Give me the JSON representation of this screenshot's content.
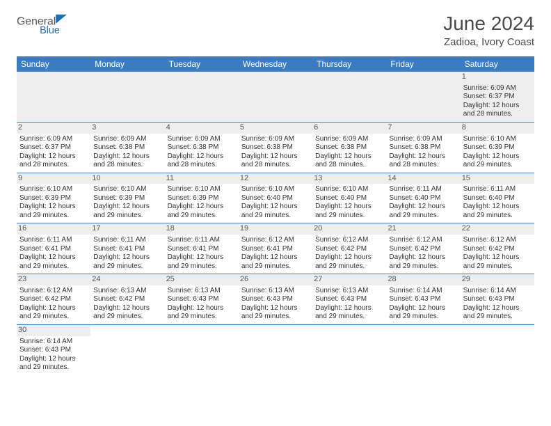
{
  "brand": {
    "word1": "General",
    "word2": "Blue",
    "word1_color": "#555555",
    "word2_color": "#1c6fb3",
    "sail_color": "#1c6fb3"
  },
  "header": {
    "title": "June 2024",
    "subtitle": "Zadioa, Ivory Coast",
    "title_color": "#4a4a4a",
    "subtitle_color": "#4a4a4a"
  },
  "styling": {
    "header_bg": "#3b7bbf",
    "header_text": "#ffffff",
    "daynum_bg": "#eeeeee",
    "cell_border": "#3b7bbf",
    "body_text": "#333333",
    "background": "#ffffff",
    "day_font_size": 11,
    "cell_font_size": 10,
    "title_font_size": 28,
    "subtitle_font_size": 15
  },
  "weekdays": [
    "Sunday",
    "Monday",
    "Tuesday",
    "Wednesday",
    "Thursday",
    "Friday",
    "Saturday"
  ],
  "weeks": [
    [
      null,
      null,
      null,
      null,
      null,
      null,
      {
        "day": "1",
        "sunrise": "Sunrise: 6:09 AM",
        "sunset": "Sunset: 6:37 PM",
        "daylight1": "Daylight: 12 hours",
        "daylight2": "and 28 minutes."
      }
    ],
    [
      {
        "day": "2",
        "sunrise": "Sunrise: 6:09 AM",
        "sunset": "Sunset: 6:37 PM",
        "daylight1": "Daylight: 12 hours",
        "daylight2": "and 28 minutes."
      },
      {
        "day": "3",
        "sunrise": "Sunrise: 6:09 AM",
        "sunset": "Sunset: 6:38 PM",
        "daylight1": "Daylight: 12 hours",
        "daylight2": "and 28 minutes."
      },
      {
        "day": "4",
        "sunrise": "Sunrise: 6:09 AM",
        "sunset": "Sunset: 6:38 PM",
        "daylight1": "Daylight: 12 hours",
        "daylight2": "and 28 minutes."
      },
      {
        "day": "5",
        "sunrise": "Sunrise: 6:09 AM",
        "sunset": "Sunset: 6:38 PM",
        "daylight1": "Daylight: 12 hours",
        "daylight2": "and 28 minutes."
      },
      {
        "day": "6",
        "sunrise": "Sunrise: 6:09 AM",
        "sunset": "Sunset: 6:38 PM",
        "daylight1": "Daylight: 12 hours",
        "daylight2": "and 28 minutes."
      },
      {
        "day": "7",
        "sunrise": "Sunrise: 6:09 AM",
        "sunset": "Sunset: 6:38 PM",
        "daylight1": "Daylight: 12 hours",
        "daylight2": "and 28 minutes."
      },
      {
        "day": "8",
        "sunrise": "Sunrise: 6:10 AM",
        "sunset": "Sunset: 6:39 PM",
        "daylight1": "Daylight: 12 hours",
        "daylight2": "and 29 minutes."
      }
    ],
    [
      {
        "day": "9",
        "sunrise": "Sunrise: 6:10 AM",
        "sunset": "Sunset: 6:39 PM",
        "daylight1": "Daylight: 12 hours",
        "daylight2": "and 29 minutes."
      },
      {
        "day": "10",
        "sunrise": "Sunrise: 6:10 AM",
        "sunset": "Sunset: 6:39 PM",
        "daylight1": "Daylight: 12 hours",
        "daylight2": "and 29 minutes."
      },
      {
        "day": "11",
        "sunrise": "Sunrise: 6:10 AM",
        "sunset": "Sunset: 6:39 PM",
        "daylight1": "Daylight: 12 hours",
        "daylight2": "and 29 minutes."
      },
      {
        "day": "12",
        "sunrise": "Sunrise: 6:10 AM",
        "sunset": "Sunset: 6:40 PM",
        "daylight1": "Daylight: 12 hours",
        "daylight2": "and 29 minutes."
      },
      {
        "day": "13",
        "sunrise": "Sunrise: 6:10 AM",
        "sunset": "Sunset: 6:40 PM",
        "daylight1": "Daylight: 12 hours",
        "daylight2": "and 29 minutes."
      },
      {
        "day": "14",
        "sunrise": "Sunrise: 6:11 AM",
        "sunset": "Sunset: 6:40 PM",
        "daylight1": "Daylight: 12 hours",
        "daylight2": "and 29 minutes."
      },
      {
        "day": "15",
        "sunrise": "Sunrise: 6:11 AM",
        "sunset": "Sunset: 6:40 PM",
        "daylight1": "Daylight: 12 hours",
        "daylight2": "and 29 minutes."
      }
    ],
    [
      {
        "day": "16",
        "sunrise": "Sunrise: 6:11 AM",
        "sunset": "Sunset: 6:41 PM",
        "daylight1": "Daylight: 12 hours",
        "daylight2": "and 29 minutes."
      },
      {
        "day": "17",
        "sunrise": "Sunrise: 6:11 AM",
        "sunset": "Sunset: 6:41 PM",
        "daylight1": "Daylight: 12 hours",
        "daylight2": "and 29 minutes."
      },
      {
        "day": "18",
        "sunrise": "Sunrise: 6:11 AM",
        "sunset": "Sunset: 6:41 PM",
        "daylight1": "Daylight: 12 hours",
        "daylight2": "and 29 minutes."
      },
      {
        "day": "19",
        "sunrise": "Sunrise: 6:12 AM",
        "sunset": "Sunset: 6:41 PM",
        "daylight1": "Daylight: 12 hours",
        "daylight2": "and 29 minutes."
      },
      {
        "day": "20",
        "sunrise": "Sunrise: 6:12 AM",
        "sunset": "Sunset: 6:42 PM",
        "daylight1": "Daylight: 12 hours",
        "daylight2": "and 29 minutes."
      },
      {
        "day": "21",
        "sunrise": "Sunrise: 6:12 AM",
        "sunset": "Sunset: 6:42 PM",
        "daylight1": "Daylight: 12 hours",
        "daylight2": "and 29 minutes."
      },
      {
        "day": "22",
        "sunrise": "Sunrise: 6:12 AM",
        "sunset": "Sunset: 6:42 PM",
        "daylight1": "Daylight: 12 hours",
        "daylight2": "and 29 minutes."
      }
    ],
    [
      {
        "day": "23",
        "sunrise": "Sunrise: 6:12 AM",
        "sunset": "Sunset: 6:42 PM",
        "daylight1": "Daylight: 12 hours",
        "daylight2": "and 29 minutes."
      },
      {
        "day": "24",
        "sunrise": "Sunrise: 6:13 AM",
        "sunset": "Sunset: 6:42 PM",
        "daylight1": "Daylight: 12 hours",
        "daylight2": "and 29 minutes."
      },
      {
        "day": "25",
        "sunrise": "Sunrise: 6:13 AM",
        "sunset": "Sunset: 6:43 PM",
        "daylight1": "Daylight: 12 hours",
        "daylight2": "and 29 minutes."
      },
      {
        "day": "26",
        "sunrise": "Sunrise: 6:13 AM",
        "sunset": "Sunset: 6:43 PM",
        "daylight1": "Daylight: 12 hours",
        "daylight2": "and 29 minutes."
      },
      {
        "day": "27",
        "sunrise": "Sunrise: 6:13 AM",
        "sunset": "Sunset: 6:43 PM",
        "daylight1": "Daylight: 12 hours",
        "daylight2": "and 29 minutes."
      },
      {
        "day": "28",
        "sunrise": "Sunrise: 6:14 AM",
        "sunset": "Sunset: 6:43 PM",
        "daylight1": "Daylight: 12 hours",
        "daylight2": "and 29 minutes."
      },
      {
        "day": "29",
        "sunrise": "Sunrise: 6:14 AM",
        "sunset": "Sunset: 6:43 PM",
        "daylight1": "Daylight: 12 hours",
        "daylight2": "and 29 minutes."
      }
    ],
    [
      {
        "day": "30",
        "sunrise": "Sunrise: 6:14 AM",
        "sunset": "Sunset: 6:43 PM",
        "daylight1": "Daylight: 12 hours",
        "daylight2": "and 29 minutes."
      },
      null,
      null,
      null,
      null,
      null,
      null
    ]
  ]
}
